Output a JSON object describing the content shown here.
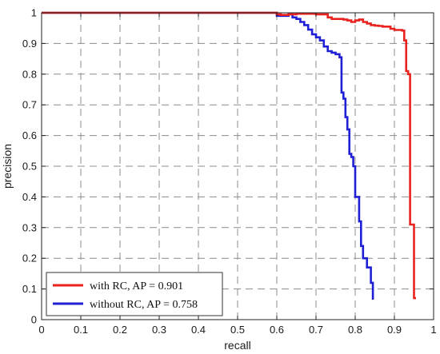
{
  "chart_data": {
    "type": "line",
    "xlabel": "recall",
    "ylabel": "precision",
    "xlim": [
      0,
      1
    ],
    "ylim": [
      0,
      1
    ],
    "grid": true,
    "legend_position": "bottom-left",
    "x_ticks": [
      "0",
      "0.1",
      "0.2",
      "0.3",
      "0.4",
      "0.5",
      "0.6",
      "0.7",
      "0.8",
      "0.9",
      "1"
    ],
    "y_ticks": [
      "0",
      "0.1",
      "0.2",
      "0.3",
      "0.4",
      "0.5",
      "0.6",
      "0.7",
      "0.8",
      "0.9",
      "1"
    ],
    "series": [
      {
        "name": "with RC, AP = 0.901",
        "color": "#e8231f",
        "x": [
          0,
          0.59,
          0.6,
          0.61,
          0.63,
          0.65,
          0.7,
          0.73,
          0.74,
          0.77,
          0.78,
          0.79,
          0.8,
          0.81,
          0.82,
          0.83,
          0.84,
          0.85,
          0.86,
          0.87,
          0.89,
          0.9,
          0.92,
          0.925,
          0.93,
          0.935,
          0.94,
          0.945,
          0.95,
          0.955
        ],
        "y": [
          1,
          1,
          0.995,
          0.993,
          0.995,
          0.997,
          0.995,
          0.985,
          0.98,
          0.978,
          0.975,
          0.97,
          0.975,
          0.978,
          0.97,
          0.965,
          0.96,
          0.958,
          0.957,
          0.955,
          0.948,
          0.944,
          0.942,
          0.91,
          0.81,
          0.8,
          0.31,
          0.31,
          0.07,
          0.07
        ]
      },
      {
        "name": "without RC, AP = 0.758",
        "color": "#1f1fd6",
        "x": [
          0,
          0.59,
          0.6,
          0.63,
          0.64,
          0.65,
          0.66,
          0.67,
          0.68,
          0.69,
          0.7,
          0.71,
          0.72,
          0.73,
          0.74,
          0.75,
          0.76,
          0.765,
          0.77,
          0.775,
          0.78,
          0.785,
          0.79,
          0.795,
          0.8,
          0.81,
          0.815,
          0.82,
          0.83,
          0.84,
          0.845
        ],
        "y": [
          1,
          1,
          0.99,
          0.995,
          0.985,
          0.98,
          0.97,
          0.96,
          0.945,
          0.93,
          0.92,
          0.91,
          0.89,
          0.875,
          0.87,
          0.865,
          0.855,
          0.74,
          0.72,
          0.66,
          0.62,
          0.54,
          0.53,
          0.5,
          0.4,
          0.32,
          0.24,
          0.2,
          0.17,
          0.12,
          0.065
        ]
      }
    ]
  }
}
